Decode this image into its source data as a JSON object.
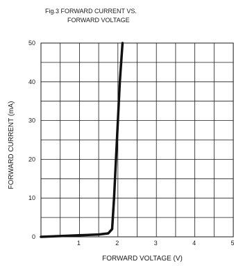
{
  "chart_data": {
    "type": "line",
    "title_lines": [
      "Fig.3 FORWARD CURRENT VS.",
      "FORWARD VOLTAGE"
    ],
    "xlabel": "FORWARD VOLTAGE (V)",
    "ylabel": "FORWARD CURRENT (mA)",
    "xlim": [
      0,
      5
    ],
    "ylim": [
      0,
      50
    ],
    "x_tick_labels": [
      "1",
      "2",
      "3",
      "4",
      "5"
    ],
    "y_tick_labels": [
      "0",
      "10",
      "20",
      "30",
      "40",
      "50"
    ],
    "x_tick_values": [
      1,
      2,
      3,
      4,
      5
    ],
    "y_tick_values": [
      0,
      10,
      20,
      30,
      40,
      50
    ],
    "grid": true,
    "x_grid_step": 0.5,
    "y_grid_step": 5,
    "series": [
      {
        "color": "#111111",
        "points": [
          [
            0,
            0
          ],
          [
            0.5,
            0.2
          ],
          [
            1.0,
            0.4
          ],
          [
            1.5,
            0.6
          ],
          [
            1.75,
            0.9
          ],
          [
            1.85,
            2
          ],
          [
            1.9,
            10
          ],
          [
            1.95,
            20
          ],
          [
            2.0,
            30
          ],
          [
            2.05,
            40
          ],
          [
            2.12,
            50
          ]
        ]
      }
    ]
  }
}
